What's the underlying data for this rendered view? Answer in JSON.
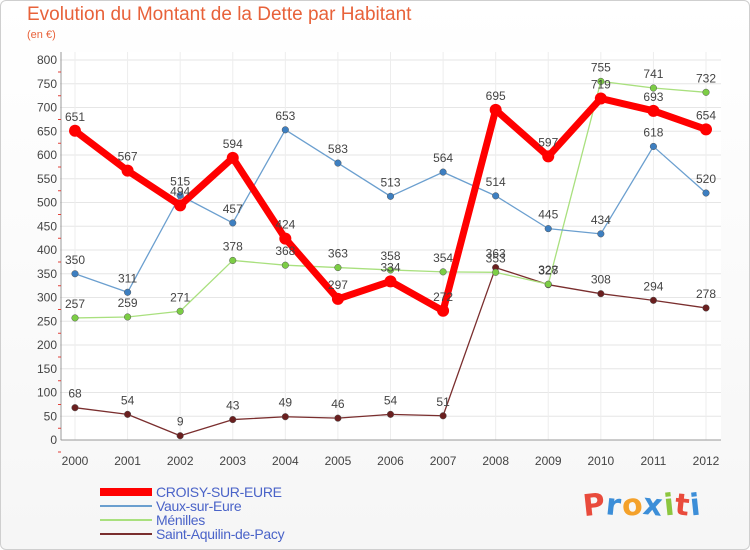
{
  "header": {
    "title": "Evolution du Montant de la Dette par Habitant",
    "unit": "(en €)"
  },
  "logo": {
    "text": "Proxiti",
    "letters": [
      "P",
      "r",
      "o",
      "x",
      "i",
      "t",
      "i"
    ],
    "colors": [
      "#e94b3c",
      "#3c8ed8",
      "#f4a12a",
      "#3c8ed8",
      "#8cc63f",
      "#e94b3c",
      "#3c8ed8"
    ]
  },
  "chart_data": {
    "type": "line",
    "x": [
      "2000",
      "2001",
      "2002",
      "2003",
      "2004",
      "2005",
      "2006",
      "2007",
      "2008",
      "2009",
      "2010",
      "2011",
      "2012"
    ],
    "ylim": [
      0,
      800
    ],
    "yticks": [
      0,
      50,
      100,
      150,
      200,
      250,
      300,
      350,
      400,
      450,
      500,
      550,
      600,
      650,
      700,
      750,
      800
    ],
    "grid": true,
    "legend_position": "bottom-left",
    "series": [
      {
        "name": "CROISY-SUR-EURE",
        "color": "#ff0000",
        "marker_color": "#ff0000",
        "width": 7,
        "marker": 6,
        "values": [
          651,
          567,
          494,
          594,
          424,
          297,
          334,
          272,
          695,
          597,
          719,
          693,
          654
        ],
        "labels": [
          "651",
          "567",
          "494",
          "594",
          "424",
          "297",
          "334",
          "272",
          "695",
          "597",
          "719",
          "693",
          "654"
        ]
      },
      {
        "name": "Vaux-sur-Eure",
        "color": "#6b9fcf",
        "marker_color": "#3d7fc1",
        "width": 1.3,
        "marker": 3.3,
        "values": [
          350,
          311,
          515,
          457,
          653,
          583,
          513,
          564,
          514,
          445,
          434,
          618,
          520
        ],
        "labels": [
          "350",
          "311",
          "515",
          "457",
          "653",
          "583",
          "513",
          "564",
          "514",
          "445",
          "434",
          "618",
          "520"
        ]
      },
      {
        "name": "Ménilles",
        "color": "#a9e07e",
        "marker_color": "#7ccd45",
        "width": 1.3,
        "marker": 3.3,
        "values": [
          257,
          259,
          271,
          378,
          368,
          363,
          358,
          354,
          353,
          328,
          755,
          741,
          732
        ],
        "labels": [
          "257",
          "259",
          "271",
          "378",
          "368",
          "363",
          "358",
          "354",
          "353",
          "328",
          "755",
          "741",
          "732"
        ]
      },
      {
        "name": "Saint-Aquilin-de-Pacy",
        "color": "#7a2e2e",
        "marker_color": "#6a1f1f",
        "width": 1.3,
        "marker": 3.3,
        "values": [
          68,
          54,
          9,
          43,
          49,
          46,
          54,
          51,
          363,
          327,
          308,
          294,
          278
        ],
        "labels": [
          "68",
          "54",
          "9",
          "43",
          "49",
          "46",
          "54",
          "51",
          "363",
          "327",
          "308",
          "294",
          "278"
        ]
      }
    ]
  }
}
